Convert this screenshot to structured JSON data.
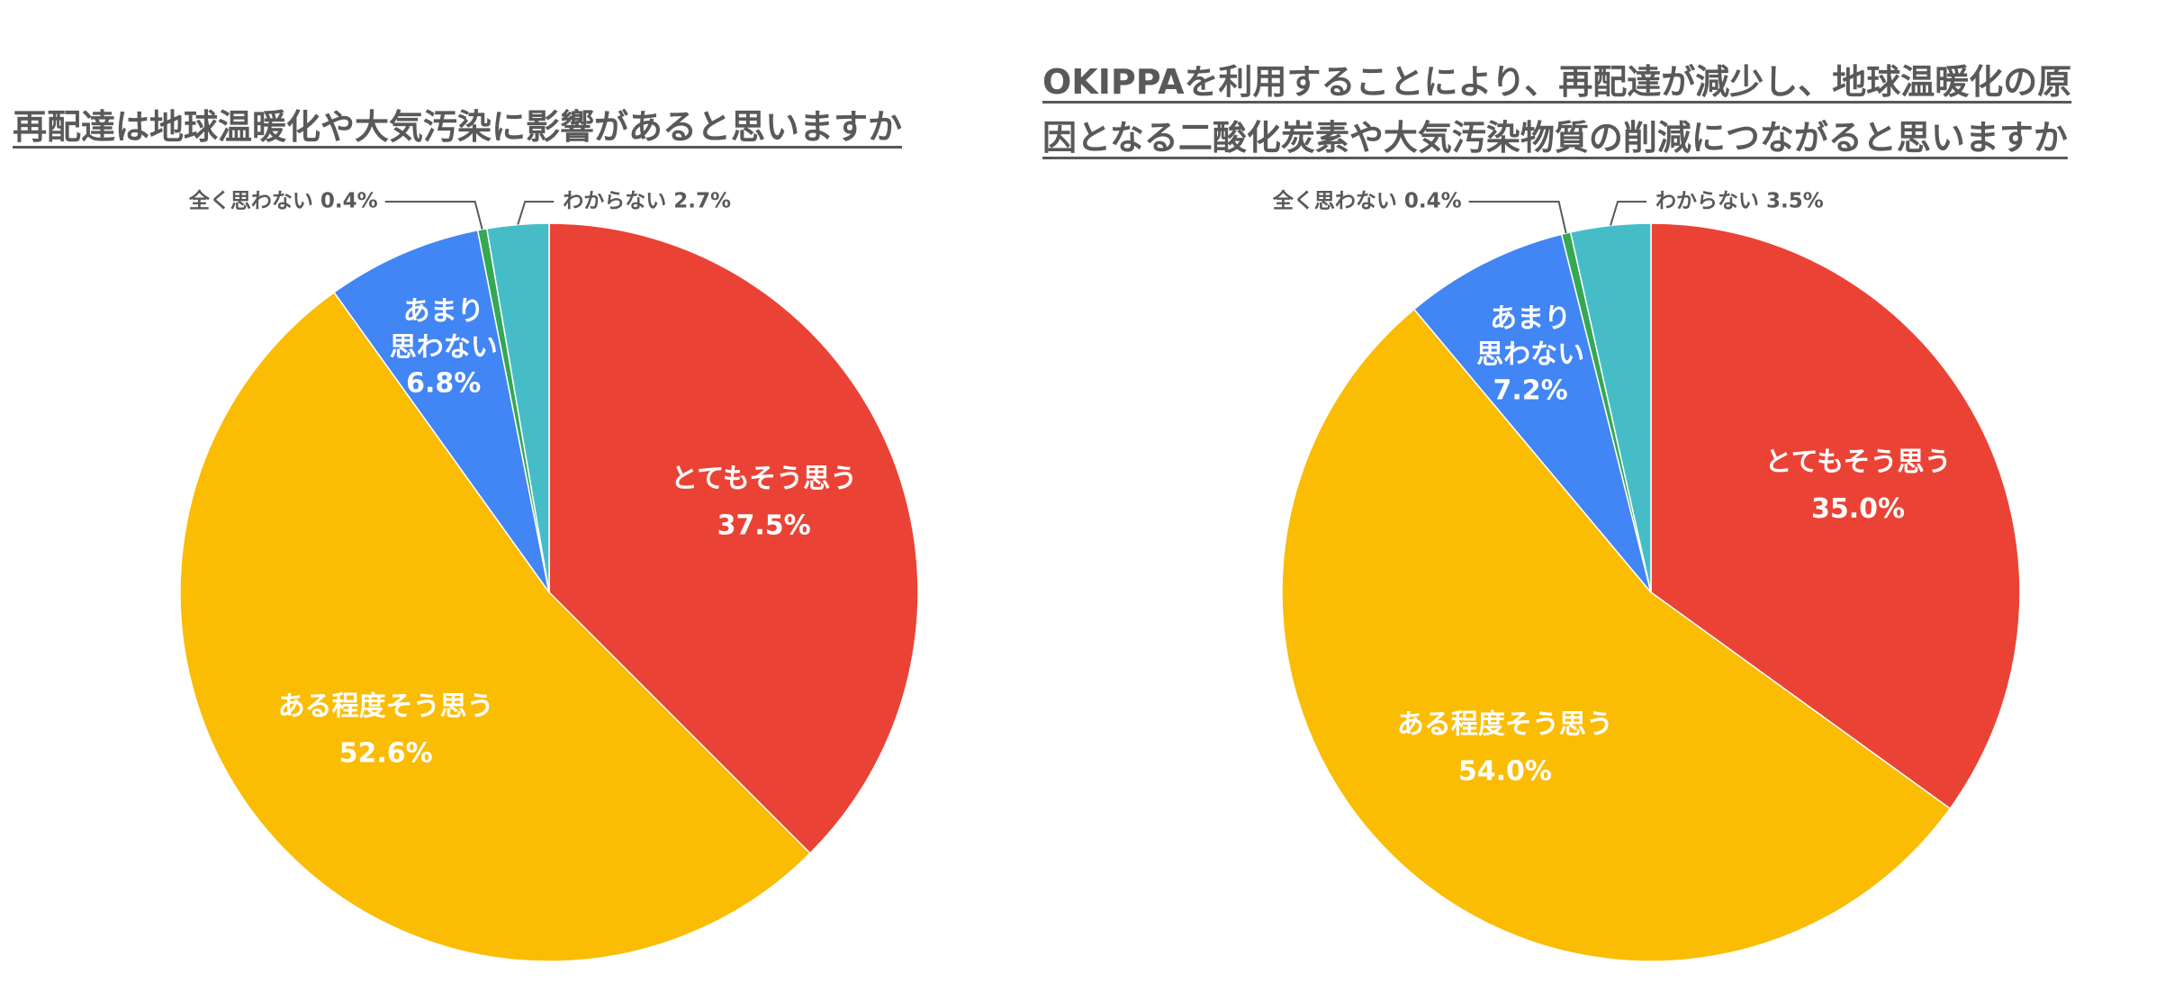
{
  "chart_data": [
    {
      "type": "pie",
      "title": "再配達は地球温暖化や大気汚染に影響があると思いますか",
      "slices": [
        {
          "label": "とてもそう思う",
          "value": 37.5,
          "value_text": "37.5%",
          "color": "#EA4335"
        },
        {
          "label": "ある程度そう思う",
          "value": 52.6,
          "value_text": "52.6%",
          "color": "#FBBC04"
        },
        {
          "label": "あまり思わない",
          "label_lines": [
            "あまり",
            "思わない"
          ],
          "value": 6.8,
          "value_text": "6.8%",
          "color": "#4285F4"
        },
        {
          "label": "全く思わない",
          "value": 0.4,
          "value_text": "0.4%",
          "color": "#34A853"
        },
        {
          "label": "わからない",
          "value": 2.7,
          "value_text": "2.7%",
          "color": "#46BDC6"
        }
      ]
    },
    {
      "type": "pie",
      "title": "OKIPPAを利用することにより、再配達が減少し、地球温暖化の原因となる二酸化炭素や大気汚染物質の削減につながると思いますか",
      "title_lines": [
        "OKIPPAを利用することにより、再配達が減少し、地球温暖化の原",
        "因となる二酸化炭素や大気汚染物質の削減につながると思いますか"
      ],
      "slices": [
        {
          "label": "とてもそう思う",
          "value": 35.0,
          "value_text": "35.0%",
          "color": "#EA4335"
        },
        {
          "label": "ある程度そう思う",
          "value": 54.0,
          "value_text": "54.0%",
          "color": "#FBBC04"
        },
        {
          "label": "あまり思わない",
          "label_lines": [
            "あまり",
            "思わない"
          ],
          "value": 7.2,
          "value_text": "7.2%",
          "color": "#4285F4"
        },
        {
          "label": "全く思わない",
          "value": 0.4,
          "value_text": "0.4%",
          "color": "#34A853"
        },
        {
          "label": "わからない",
          "value": 3.5,
          "value_text": "3.5%",
          "color": "#46BDC6"
        }
      ]
    }
  ]
}
